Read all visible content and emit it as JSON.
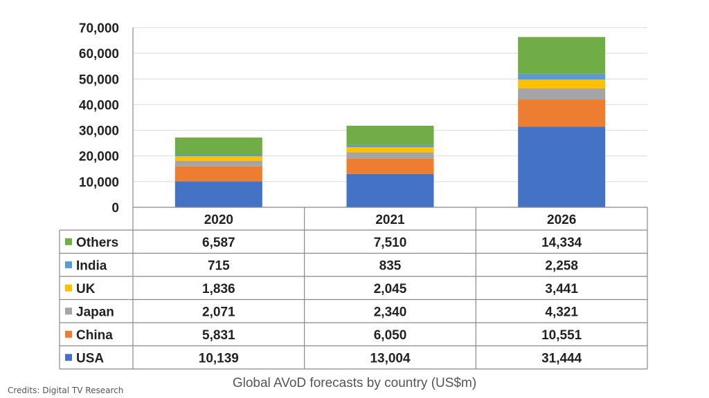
{
  "chart_data": {
    "type": "bar",
    "stacked": true,
    "categories": [
      "2020",
      "2021",
      "2026"
    ],
    "series": [
      {
        "name": "USA",
        "color": "#4472c4",
        "values": [
          10139,
          13004,
          31444
        ],
        "labels": [
          "10,139",
          "13,004",
          "31,444"
        ]
      },
      {
        "name": "China",
        "color": "#ed7d31",
        "values": [
          5831,
          6050,
          10551
        ],
        "labels": [
          "5,831",
          "6,050",
          "10,551"
        ]
      },
      {
        "name": "Japan",
        "color": "#a5a5a5",
        "values": [
          2071,
          2340,
          4321
        ],
        "labels": [
          "2,071",
          "2,340",
          "4,321"
        ]
      },
      {
        "name": "UK",
        "color": "#ffc000",
        "values": [
          1836,
          2045,
          3441
        ],
        "labels": [
          "1,836",
          "2,045",
          "3,441"
        ]
      },
      {
        "name": "India",
        "color": "#5b9bd5",
        "values": [
          715,
          835,
          2258
        ],
        "labels": [
          "715",
          "835",
          "2,258"
        ]
      },
      {
        "name": "Others",
        "color": "#70ad47",
        "values": [
          6587,
          7510,
          14334
        ],
        "labels": [
          "6,587",
          "7,510",
          "14,334"
        ]
      }
    ],
    "yticks": [
      0,
      10000,
      20000,
      30000,
      40000,
      50000,
      60000,
      70000
    ],
    "ytick_labels": [
      "0",
      "10,000",
      "20,000",
      "30,000",
      "40,000",
      "50,000",
      "60,000",
      "70,000"
    ],
    "ylim": [
      0,
      70000
    ],
    "grid": true,
    "legend": "data-table-below",
    "caption": "Global AVoD forecasts by country (US$m)"
  },
  "credits": "Credits: Digital TV Research"
}
